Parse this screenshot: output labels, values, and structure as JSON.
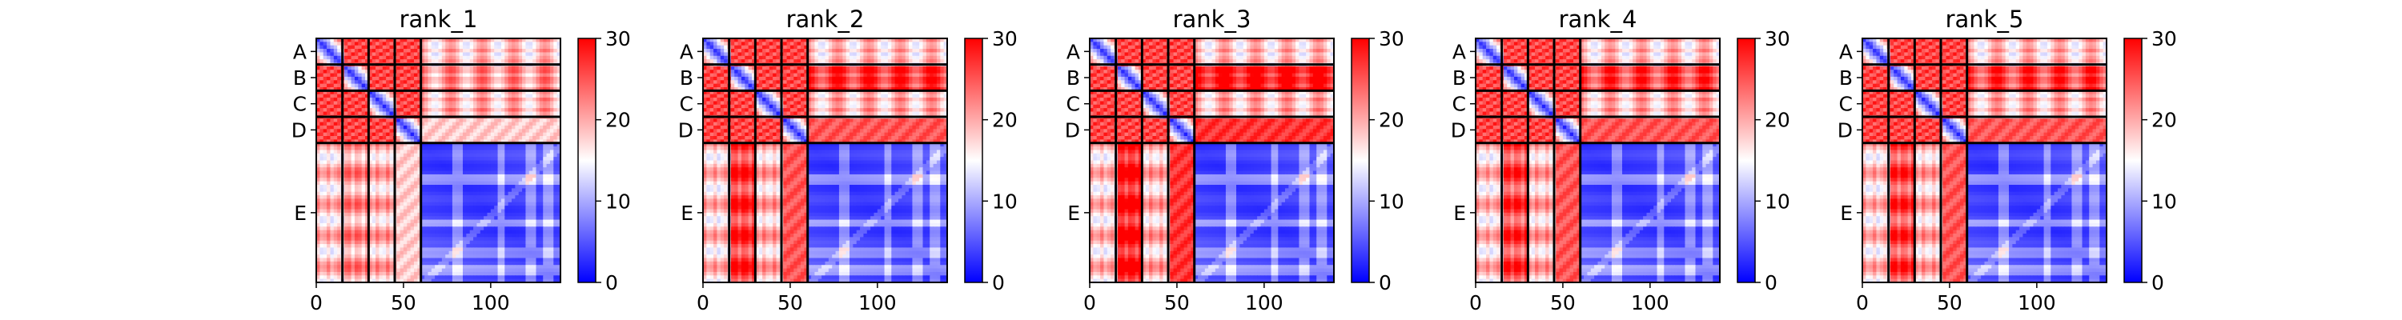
{
  "chart_data": {
    "type": "heatmap",
    "colormap": {
      "low": "#0000ff",
      "mid": "#ffffff",
      "high": "#ff0000",
      "vmin": 0,
      "vmax": 30
    },
    "colorbar_ticks": [
      "0",
      "10",
      "20",
      "30"
    ],
    "x_ticks": [
      0,
      50,
      100
    ],
    "x_tick_labels": [
      "0",
      "50",
      "100"
    ],
    "xlim": [
      0,
      140
    ],
    "chain_labels": [
      "A",
      "B",
      "C",
      "D",
      "E"
    ],
    "chain_bounds": [
      0,
      15,
      30,
      45,
      60,
      140
    ],
    "panels": [
      {
        "title": "rank_1",
        "d_offdiag": 18,
        "be_value": 21,
        "ee_base": 3
      },
      {
        "title": "rank_2",
        "d_offdiag": 25,
        "be_value": 27,
        "ee_base": 3
      },
      {
        "title": "rank_3",
        "d_offdiag": 27,
        "be_value": 29,
        "ee_base": 3
      },
      {
        "title": "rank_4",
        "d_offdiag": 25,
        "be_value": 26,
        "ee_base": 3
      },
      {
        "title": "rank_5",
        "d_offdiag": 25,
        "be_value": 26,
        "ee_base": 3
      }
    ]
  }
}
